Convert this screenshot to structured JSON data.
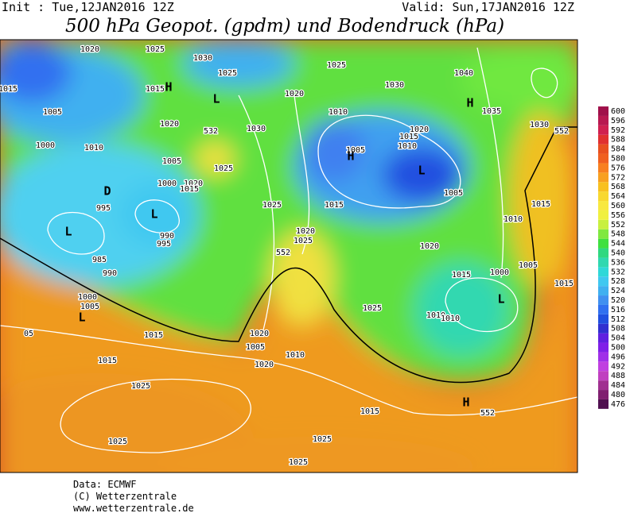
{
  "header": {
    "init": "Init : Tue,12JAN2016 12Z",
    "valid": "Valid: Sun,17JAN2016 12Z",
    "title": "500 hPa Geopot. (gpdm) und Bodendruck (hPa)"
  },
  "colorbar": {
    "ticks": [
      476,
      480,
      484,
      488,
      492,
      496,
      500,
      504,
      508,
      512,
      516,
      520,
      524,
      528,
      532,
      536,
      540,
      544,
      548,
      552,
      556,
      560,
      564,
      568,
      572,
      576,
      580,
      584,
      588,
      592,
      596,
      600
    ],
    "colors": [
      "#501050",
      "#802070",
      "#a03090",
      "#c040c0",
      "#c040e0",
      "#a030e8",
      "#8020e8",
      "#6020e0",
      "#3030d0",
      "#2050e0",
      "#3070f0",
      "#4090f0",
      "#40b0f0",
      "#40c8f0",
      "#30d8d8",
      "#30d8b0",
      "#30d880",
      "#40e040",
      "#80e840",
      "#c8f040",
      "#f0f040",
      "#f8e840",
      "#f8d830",
      "#f8c020",
      "#f8a020",
      "#f88020",
      "#f06020",
      "#e85020",
      "#e03030",
      "#d02050",
      "#b81850",
      "#a0104a"
    ]
  },
  "map": {
    "labels": [
      1015,
      1020,
      1025,
      1030,
      1025,
      "H",
      1015,
      "L",
      1020,
      1025,
      1030,
      1040,
      "H",
      1035,
      1030,
      552,
      1005,
      1020,
      532,
      1030,
      1010,
      1020,
      1015,
      1010,
      1000,
      1010,
      1005,
      "H",
      1005,
      1025,
      1000,
      1020,
      1015,
      "D",
      "L",
      1005,
      995,
      "L",
      1025,
      1015,
      1015,
      1010,
      "L",
      990,
      995,
      1020,
      1025,
      552,
      1020,
      985,
      1005,
      990,
      1015,
      1000,
      1015,
      1000,
      "L",
      1005,
      1025,
      1010,
      1010,
      "05",
      1015,
      1020,
      1005,
      1010,
      1020,
      1015,
      1025,
      "H",
      552,
      1015,
      1025,
      1025,
      1025,
      "L"
    ]
  },
  "footer": {
    "source": "Data: ECMWF",
    "copyright": "(C) Wetterzentrale",
    "url": "www.wetterzentrale.de"
  }
}
